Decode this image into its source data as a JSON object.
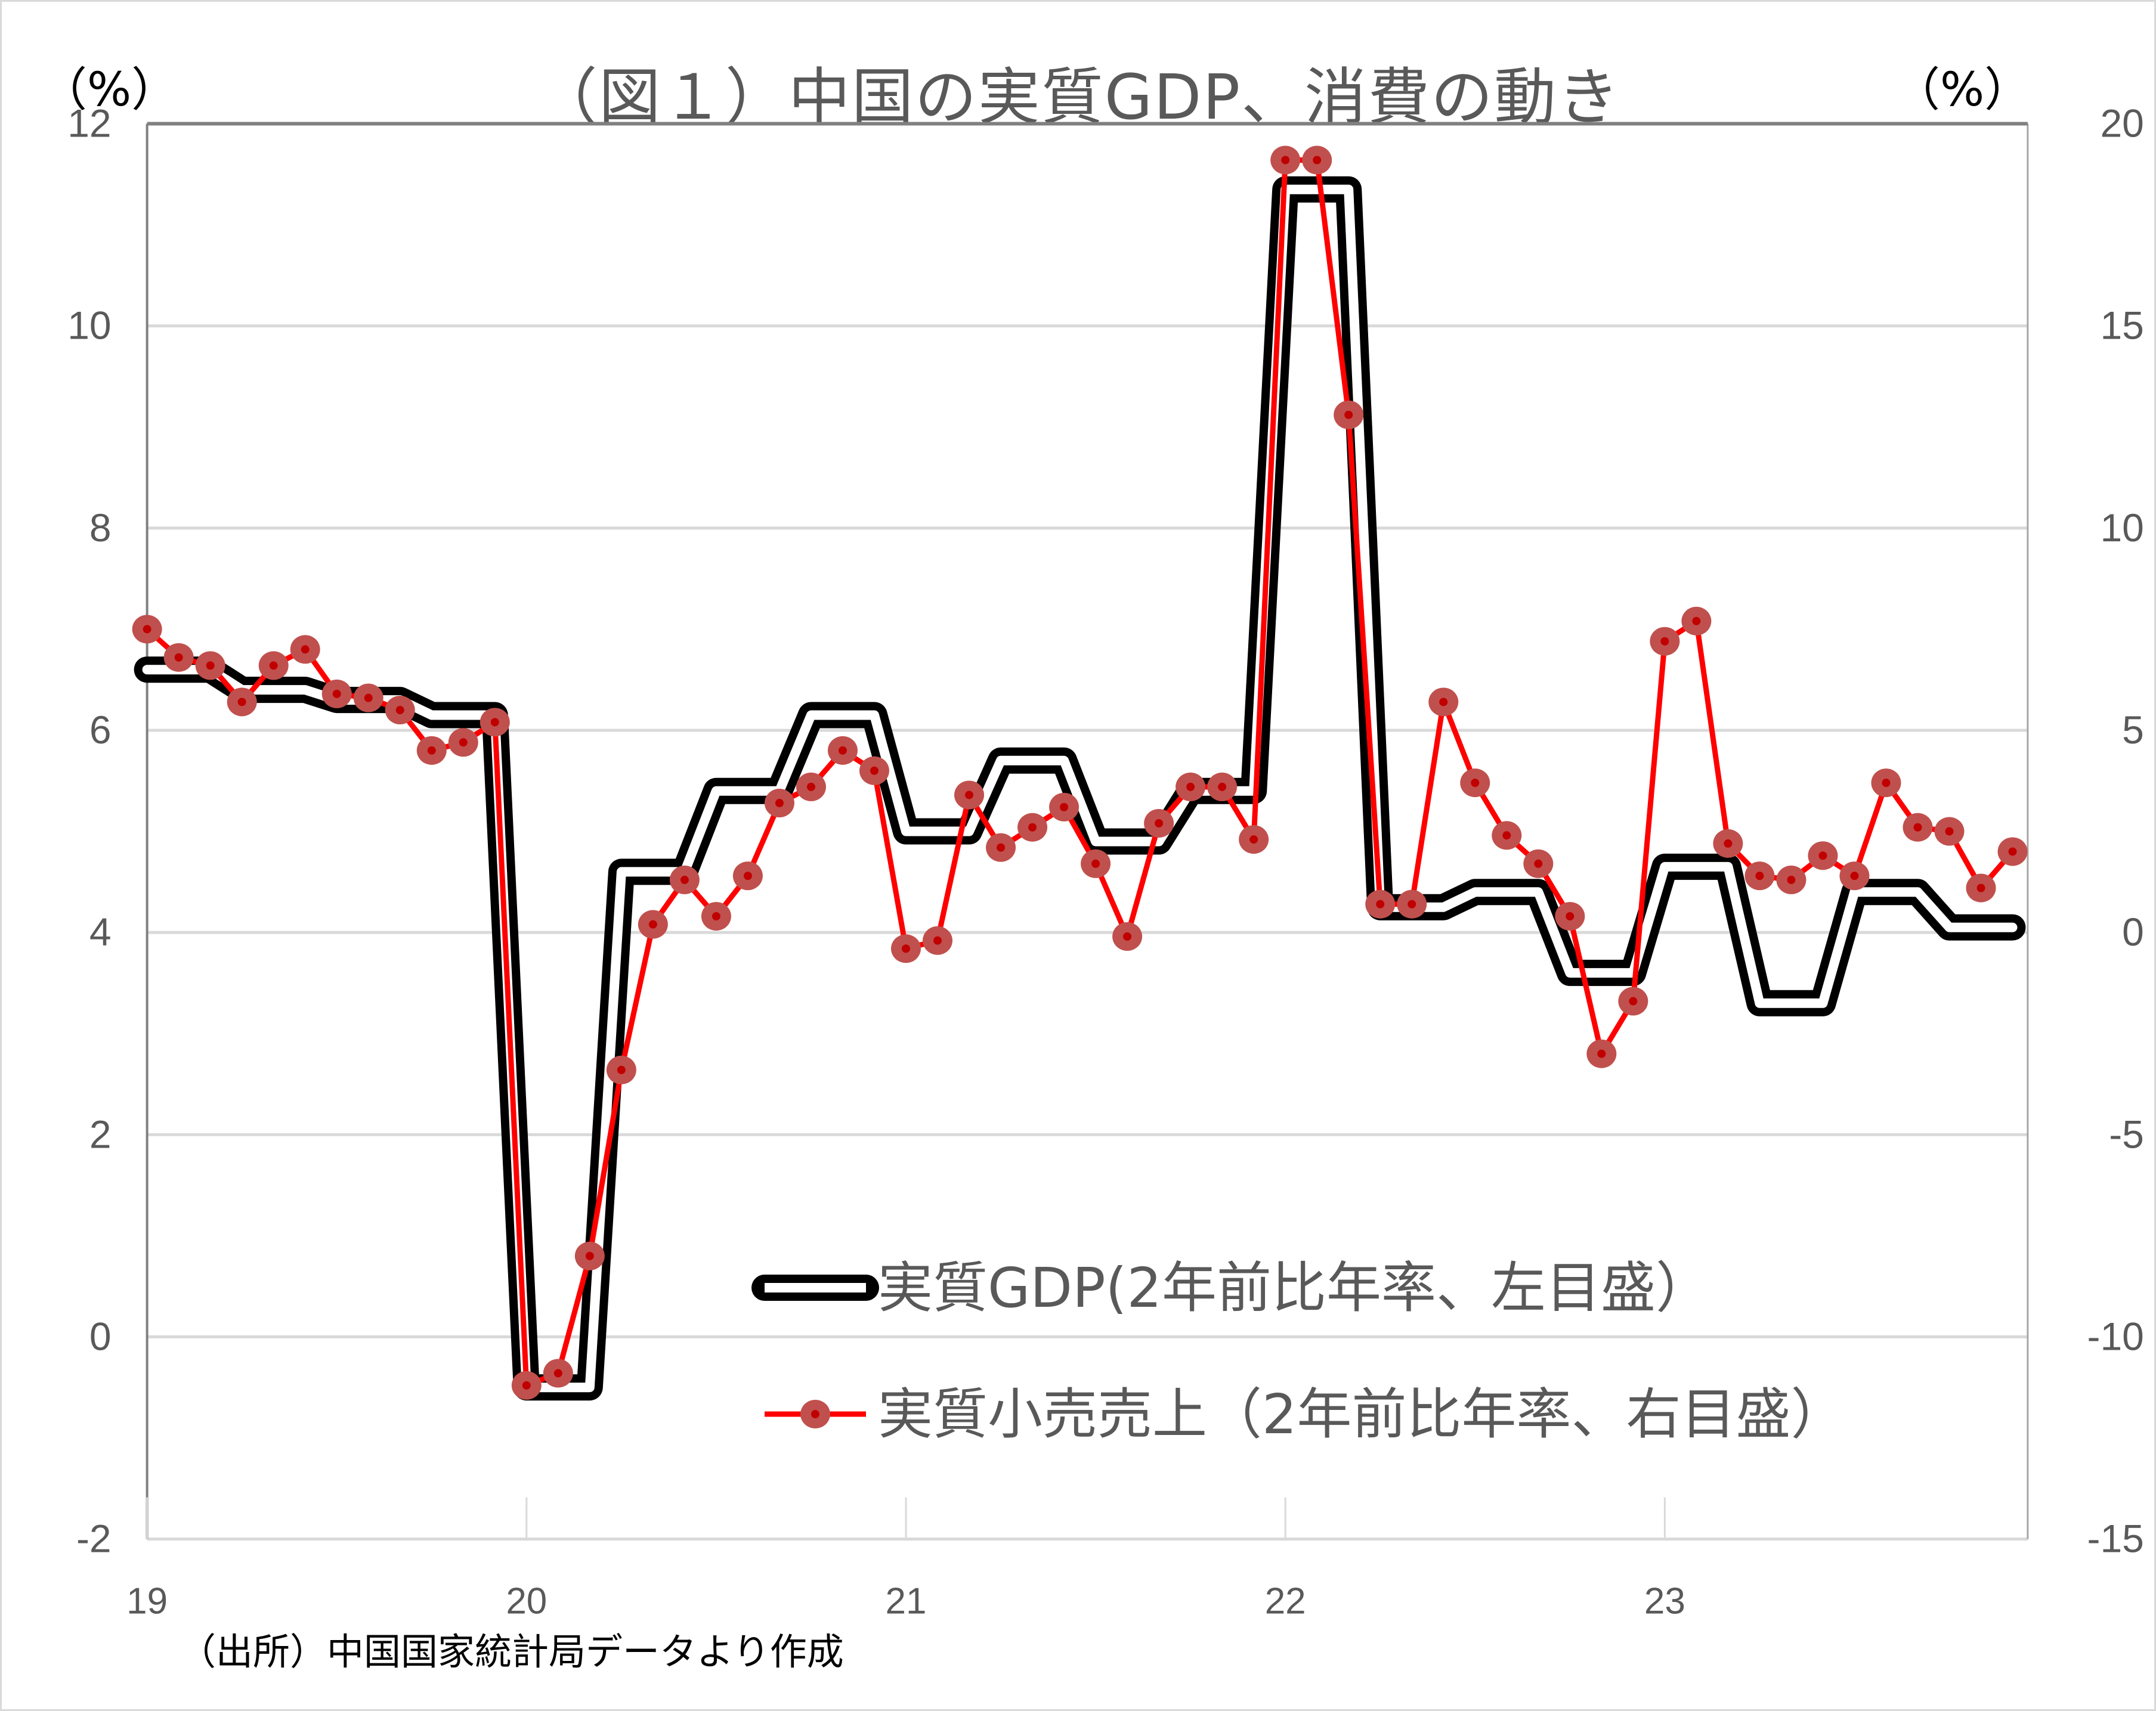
{
  "chart_data": {
    "type": "line",
    "title": "（図１）中国の実質GDP、消費の動き",
    "left_axis": {
      "label": "（%）",
      "ticks": [
        12,
        10,
        8,
        6,
        4,
        2,
        0,
        -2
      ],
      "range": [
        -2,
        12
      ]
    },
    "right_axis": {
      "label": "（%）",
      "ticks": [
        20,
        15,
        10,
        5,
        0,
        -5,
        -10,
        -15
      ],
      "range": [
        -15,
        20
      ]
    },
    "x_axis": {
      "ticks": [
        "19",
        "20",
        "21",
        "22",
        "23"
      ],
      "unit": "month",
      "start": "2019-01",
      "end": "2023-12"
    },
    "grid": "horizontal",
    "legend_position": "inside-bottom-center",
    "series": [
      {
        "name": "実質GDP(2年前比年率、左目盛）",
        "axis": "left",
        "style": "double-line-black",
        "frequency": "quarterly",
        "x": [
          "2019Q1",
          "2019Q2",
          "2019Q3",
          "2019Q4",
          "2020Q1",
          "2020Q2",
          "2020Q3",
          "2020Q4",
          "2021Q1",
          "2021Q2",
          "2021Q3",
          "2021Q4",
          "2022Q1",
          "2022Q2",
          "2022Q3",
          "2022Q4",
          "2023Q1",
          "2023Q2",
          "2023Q3",
          "2023Q4"
        ],
        "values": [
          6.6,
          6.4,
          6.3,
          6.15,
          -0.5,
          4.6,
          5.4,
          6.15,
          5.0,
          5.7,
          4.9,
          5.4,
          11.35,
          4.25,
          4.4,
          3.6,
          4.65,
          3.3,
          4.4,
          4.05
        ]
      },
      {
        "name": "実質小売売上（2年前比年率、右目盛）",
        "axis": "right",
        "style": "red-line-with-markers",
        "frequency": "monthly",
        "values": [
          7.5,
          6.8,
          6.6,
          5.7,
          6.6,
          7.0,
          5.9,
          5.8,
          5.5,
          4.5,
          4.7,
          5.2,
          -11.2,
          -10.9,
          -8.0,
          -3.4,
          0.2,
          1.3,
          0.4,
          1.4,
          3.2,
          3.6,
          4.5,
          4.0,
          -0.4,
          -0.2,
          3.4,
          2.1,
          2.6,
          3.1,
          1.7,
          -0.1,
          2.7,
          3.6,
          3.6,
          2.3,
          19.1,
          19.1,
          12.8,
          0.7,
          0.7,
          5.7,
          3.7,
          2.4,
          1.7,
          0.4,
          -3.0,
          -1.7,
          7.2,
          7.7,
          2.2,
          1.4,
          1.3,
          1.9,
          1.4,
          3.7,
          2.6,
          2.5,
          1.1,
          2.0
        ]
      }
    ],
    "colors": {
      "gdp": "#000000",
      "retail_line": "#ff0000",
      "retail_marker": "#c0504d",
      "retail_marker_dot": "#c00000",
      "grid": "#d9d9d9",
      "axis_text": "#595959"
    }
  },
  "header": {
    "title": "（図１）中国の実質GDP、消費の動き",
    "left_unit": "（%）",
    "right_unit": "（%）"
  },
  "legend": {
    "gdp": "実質GDP(2年前比年率、左目盛）",
    "retail": "実質小売売上（2年前比年率、右目盛）"
  },
  "footer": {
    "source": "（出所）中国国家統計局データより作成"
  }
}
